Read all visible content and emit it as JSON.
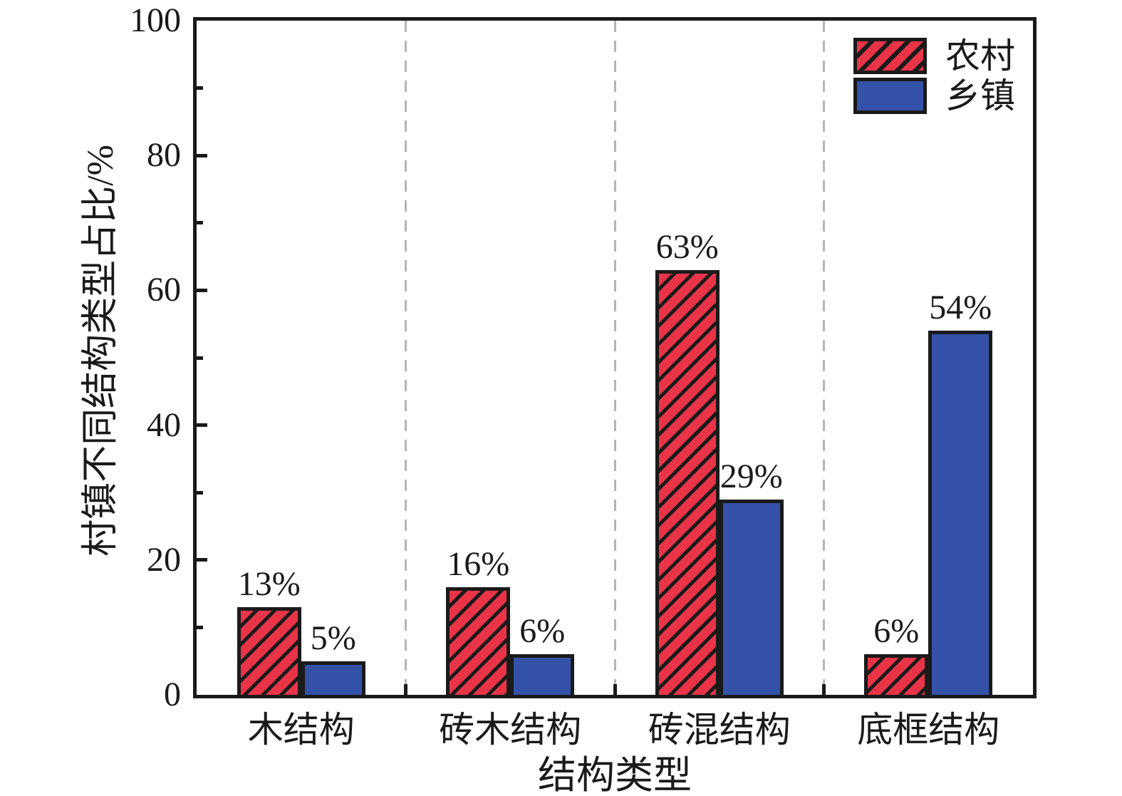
{
  "chart_data": {
    "type": "bar",
    "title": "",
    "categories": [
      "木结构",
      "砖木结构",
      "砖混结构",
      "底框结构"
    ],
    "series": [
      {
        "name": "农村",
        "fill": "#e93448",
        "hatch": "forward-diagonal",
        "values": [
          13,
          16,
          63,
          6
        ],
        "labels": [
          "13%",
          "16%",
          "63%",
          "6%"
        ]
      },
      {
        "name": "乡镇",
        "fill": "#3352a8",
        "hatch": "none",
        "values": [
          5,
          6,
          29,
          54
        ],
        "labels": [
          "5%",
          "6%",
          "29%",
          "54%"
        ]
      }
    ],
    "xlabel": "结构类型",
    "ylabel": "村镇不同结构类型占比/%",
    "ylim": [
      0,
      100
    ],
    "yticks": [
      0,
      20,
      40,
      60,
      80,
      100
    ],
    "ytick_labels": [
      "0",
      "20",
      "40",
      "60",
      "80",
      "100"
    ],
    "minor_yticks": [
      10,
      30,
      50,
      70,
      90
    ],
    "grid": "dashed vertical separators between category groups",
    "legend_position": "top-right-inside",
    "colors": {
      "axis": "#1a1a1a",
      "text": "#1a1a1a",
      "gridline": "#b4b4b4",
      "rural_red": "#e93448",
      "township_blue": "#3352a8",
      "background": "#ffffff"
    }
  }
}
